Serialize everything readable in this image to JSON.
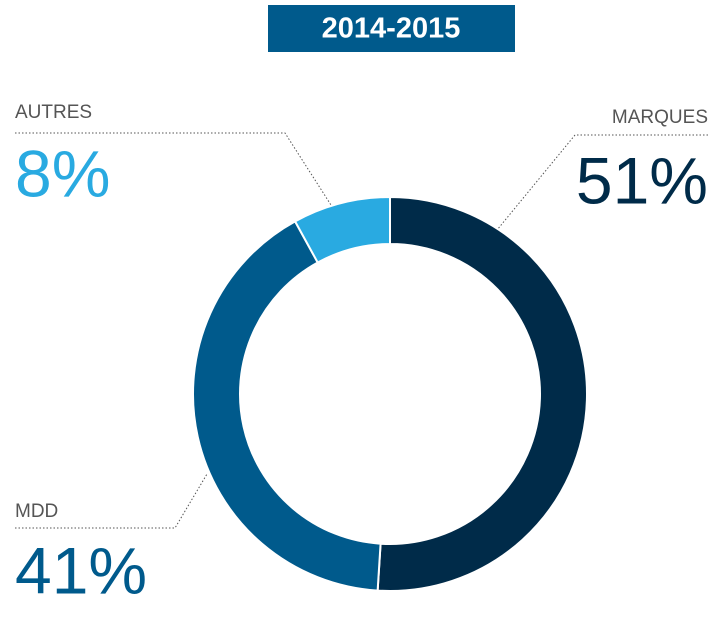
{
  "chart_data": {
    "type": "donut",
    "title": "2014-2015",
    "categories": [
      "MARQUES",
      "MDD",
      "AUTRES"
    ],
    "values": [
      51,
      41,
      8
    ],
    "value_labels": [
      "51%",
      "41%",
      "8%"
    ],
    "colors": [
      "#002b49",
      "#005a8c",
      "#29aae1"
    ]
  }
}
